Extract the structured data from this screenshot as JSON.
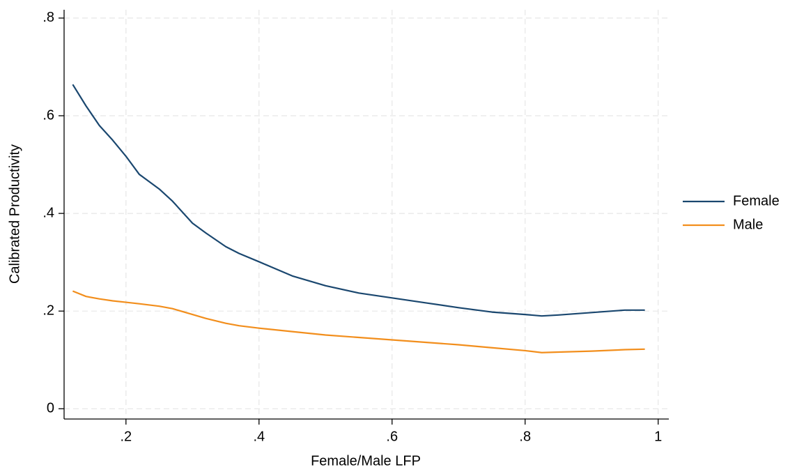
{
  "chart_data": {
    "type": "line",
    "x_label": "Female/Male LFP",
    "y_label": "Calibrated Productivity",
    "x": [
      0.12,
      0.14,
      0.16,
      0.18,
      0.2,
      0.22,
      0.25,
      0.27,
      0.3,
      0.32,
      0.35,
      0.37,
      0.4,
      0.45,
      0.5,
      0.55,
      0.6,
      0.65,
      0.7,
      0.75,
      0.8,
      0.825,
      0.85,
      0.9,
      0.95,
      0.98
    ],
    "series": [
      {
        "name": "Female",
        "color": "#1a476f",
        "values": [
          0.664,
          0.62,
          0.58,
          0.55,
          0.517,
          0.48,
          0.45,
          0.425,
          0.38,
          0.36,
          0.332,
          0.318,
          0.301,
          0.272,
          0.252,
          0.237,
          0.227,
          0.217,
          0.207,
          0.198,
          0.193,
          0.19,
          0.192,
          0.197,
          0.202,
          0.202
        ]
      },
      {
        "name": "Male",
        "color": "#f28e1c",
        "values": [
          0.241,
          0.23,
          0.225,
          0.221,
          0.218,
          0.215,
          0.21,
          0.205,
          0.193,
          0.185,
          0.175,
          0.17,
          0.165,
          0.158,
          0.151,
          0.146,
          0.141,
          0.136,
          0.131,
          0.125,
          0.119,
          0.115,
          0.116,
          0.118,
          0.121,
          0.122
        ]
      }
    ],
    "xlim": [
      0.107,
      1.016
    ],
    "ylim": [
      -0.021,
      0.817
    ],
    "xticks": [
      {
        "value": 0.2,
        "label": ".2"
      },
      {
        "value": 0.4,
        "label": ".4"
      },
      {
        "value": 0.6,
        "label": ".6"
      },
      {
        "value": 0.8,
        "label": ".8"
      },
      1
    ],
    "yticks": [
      0,
      {
        "value": 0.2,
        "label": ".2"
      },
      {
        "value": 0.4,
        "label": ".4"
      },
      {
        "value": 0.6,
        "label": ".6"
      },
      {
        "value": 0.8,
        "label": ".8"
      }
    ],
    "grid": true,
    "legend_position": "right"
  }
}
